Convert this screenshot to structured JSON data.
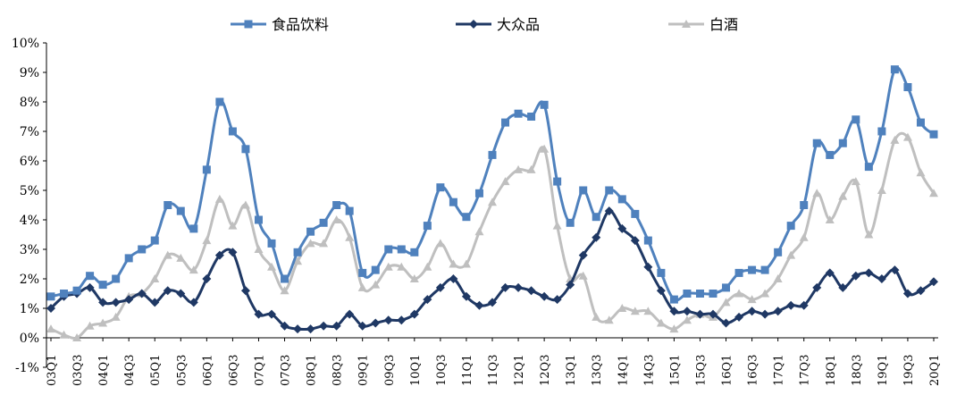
{
  "chart_data": {
    "type": "line",
    "title": "",
    "xlabel": "",
    "ylabel": "",
    "ylim": [
      -1,
      10
    ],
    "yticks": [
      "10%",
      "9%",
      "8%",
      "7%",
      "6%",
      "5%",
      "4%",
      "3%",
      "2%",
      "1%",
      "0%",
      "-1%"
    ],
    "x_tick_labels": [
      "03Q1",
      "03Q3",
      "04Q1",
      "04Q3",
      "05Q1",
      "05Q3",
      "06Q1",
      "06Q3",
      "07Q1",
      "07Q3",
      "08Q1",
      "08Q3",
      "09Q1",
      "09Q3",
      "10Q1",
      "10Q3",
      "11Q1",
      "11Q3",
      "12Q1",
      "12Q3",
      "13Q1",
      "13Q3",
      "14Q1",
      "14Q3",
      "15Q1",
      "15Q3",
      "16Q1",
      "16Q3",
      "17Q1",
      "17Q3",
      "18Q1",
      "18Q3",
      "19Q1",
      "19Q3",
      "20Q1"
    ],
    "grid": false,
    "legend_position": "top",
    "series": [
      {
        "name": "食品饮料",
        "color": "#4f81bd",
        "marker": "square",
        "values": [
          1.4,
          1.5,
          1.6,
          2.1,
          1.8,
          2.0,
          2.7,
          3.0,
          3.3,
          4.5,
          4.3,
          3.7,
          5.7,
          8.0,
          7.0,
          6.4,
          4.0,
          3.2,
          2.0,
          2.9,
          3.6,
          3.9,
          4.5,
          4.3,
          2.2,
          2.3,
          3.0,
          3.0,
          2.9,
          3.8,
          5.1,
          4.6,
          4.1,
          4.9,
          6.2,
          7.3,
          7.6,
          7.5,
          7.9,
          5.3,
          3.9,
          5.0,
          4.1,
          5.0,
          4.7,
          4.2,
          3.3,
          2.2,
          1.3,
          1.5,
          1.5,
          1.5,
          1.7,
          2.2,
          2.3,
          2.3,
          2.9,
          3.8,
          4.5,
          6.6,
          6.2,
          6.6,
          7.4,
          5.8,
          7.0,
          9.1,
          8.5,
          7.3,
          6.9
        ]
      },
      {
        "name": "大众品",
        "color": "#1f3864",
        "marker": "diamond",
        "values": [
          1.0,
          1.4,
          1.5,
          1.7,
          1.2,
          1.2,
          1.3,
          1.5,
          1.2,
          1.6,
          1.5,
          1.2,
          2.0,
          2.8,
          2.9,
          1.6,
          0.8,
          0.8,
          0.4,
          0.3,
          0.3,
          0.4,
          0.4,
          0.8,
          0.4,
          0.5,
          0.6,
          0.6,
          0.8,
          1.3,
          1.7,
          2.0,
          1.4,
          1.1,
          1.2,
          1.7,
          1.7,
          1.6,
          1.4,
          1.3,
          1.8,
          2.8,
          3.4,
          4.3,
          3.7,
          3.3,
          2.4,
          1.6,
          0.9,
          0.9,
          0.8,
          0.8,
          0.5,
          0.7,
          0.9,
          0.8,
          0.9,
          1.1,
          1.1,
          1.7,
          2.2,
          1.7,
          2.1,
          2.2,
          2.0,
          2.3,
          1.5,
          1.6,
          1.9
        ]
      },
      {
        "name": "白酒",
        "color": "#bfbfbf",
        "marker": "triangle",
        "values": [
          0.3,
          0.1,
          0.0,
          0.4,
          0.5,
          0.7,
          1.4,
          1.5,
          2.0,
          2.8,
          2.7,
          2.3,
          3.3,
          4.7,
          3.8,
          4.5,
          3.0,
          2.4,
          1.6,
          2.6,
          3.2,
          3.2,
          4.0,
          3.4,
          1.7,
          1.8,
          2.4,
          2.4,
          2.0,
          2.4,
          3.2,
          2.5,
          2.5,
          3.6,
          4.6,
          5.3,
          5.7,
          5.7,
          6.4,
          3.8,
          2.0,
          2.1,
          0.7,
          0.6,
          1.0,
          0.9,
          0.9,
          0.5,
          0.3,
          0.6,
          0.8,
          0.7,
          1.2,
          1.5,
          1.3,
          1.5,
          2.0,
          2.8,
          3.4,
          4.9,
          4.0,
          4.8,
          5.3,
          3.5,
          5.0,
          6.7,
          6.8,
          5.6,
          4.9
        ]
      }
    ]
  }
}
